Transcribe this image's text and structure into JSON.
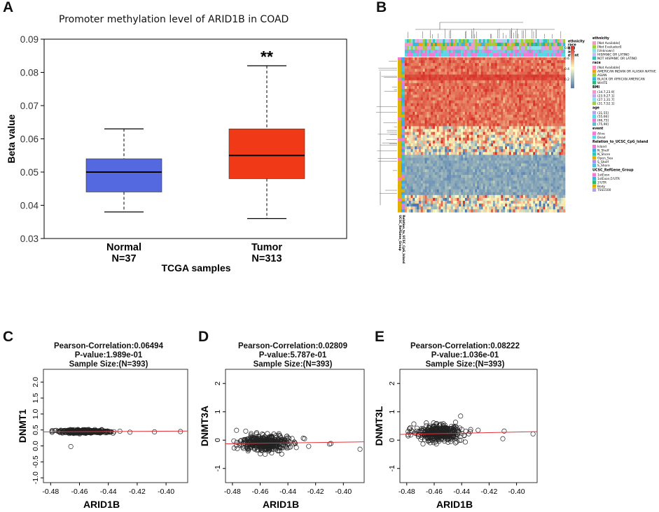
{
  "panel_labels": {
    "A": "A",
    "B": "B",
    "C": "C",
    "D": "D",
    "E": "E"
  },
  "colors": {
    "normal": "#5469e0",
    "tumor": "#f03a17",
    "fit_line": "#e8323c"
  },
  "chart_data": [
    {
      "id": "A",
      "type": "box",
      "title": "Promoter methylation level of ARID1B in COAD",
      "xlabel": "TCGA samples",
      "ylabel": "Beta value",
      "ylim": [
        0.03,
        0.09
      ],
      "yticks": [
        0.03,
        0.04,
        0.05,
        0.06,
        0.07,
        0.08,
        0.09
      ],
      "ytick_labels": [
        "0.03",
        "0.04",
        "0.05",
        "0.06",
        "0.07",
        "0.08",
        "0.09"
      ],
      "significance": "**",
      "groups": [
        {
          "name": "Normal",
          "n_label": "N=37",
          "min": 0.038,
          "q1": 0.044,
          "median": 0.05,
          "q3": 0.054,
          "max": 0.063
        },
        {
          "name": "Tumor",
          "n_label": "N=313",
          "min": 0.036,
          "q1": 0.048,
          "median": 0.055,
          "q3": 0.063,
          "max": 0.082
        }
      ]
    },
    {
      "id": "B",
      "type": "heatmap",
      "description": "Clustered methylation heatmap of ARID1B CpG probes",
      "top_annotation_labels": [
        "ethnicity",
        "race",
        "BMI",
        "age",
        "event"
      ],
      "side_annotation_labels": [
        "UCSC_RefGene_Group",
        "Relation_to_UCSC_CpG_Island"
      ],
      "color_scale": {
        "ticks": [
          0.8,
          0.6,
          0.4,
          0.2
        ],
        "tick_labels": [
          "0.8",
          "0.6",
          "0.4",
          "0.2"
        ],
        "high": "#d73027",
        "mid": "#fffec0",
        "low": "#4575b4"
      },
      "legend": [
        {
          "title": "ethnicity",
          "items": [
            {
              "label": "[Not Available]",
              "color": "#f598c8"
            },
            {
              "label": "[Not Evaluated]",
              "color": "#9fcf3a"
            },
            {
              "label": "[Unknown]",
              "color": "#8adfe0"
            },
            {
              "label": "HISPANIC OR LATINO",
              "color": "#d0b8f0"
            },
            {
              "label": "NOT HISPANIC OR LATINO",
              "color": "#35c2bf"
            }
          ]
        },
        {
          "title": "race",
          "items": [
            {
              "label": "[Not Available]",
              "color": "#f598c8"
            },
            {
              "label": "AMERICAN INDIAN OR ALASKA NATIVE",
              "color": "#f0a01e"
            },
            {
              "label": "ASIAN",
              "color": "#9fcf3a"
            },
            {
              "label": "BLACK OR AFRICAN AMERICAN",
              "color": "#3cb4e0"
            },
            {
              "label": "WHITE",
              "color": "#2cb870"
            }
          ]
        },
        {
          "title": "BMI",
          "items": [
            {
              "label": "(14.7,23.9]",
              "color": "#f598c8"
            },
            {
              "label": "(23.9,27.1]",
              "color": "#c7a6ee"
            },
            {
              "label": "(27.1,31.7]",
              "color": "#8be1ea"
            },
            {
              "label": "(31.7,52.1]",
              "color": "#a4c94b"
            }
          ]
        },
        {
          "title": "age",
          "items": [
            {
              "label": "(31,55]",
              "color": "#b7a0ec"
            },
            {
              "label": "(55,66]",
              "color": "#64d6dd"
            },
            {
              "label": "(66,75]",
              "color": "#e97ad2"
            },
            {
              "label": "(75,90]",
              "color": "#5bbfd0"
            }
          ]
        },
        {
          "title": "event",
          "items": [
            {
              "label": "Alive",
              "color": "#f27ad1"
            },
            {
              "label": "Dead",
              "color": "#5bd6e6"
            }
          ]
        },
        {
          "title": "Relation_to_UCSC_CpG_Island",
          "items": [
            {
              "label": "Island",
              "color": "#f27ad1"
            },
            {
              "label": "N_Shelf",
              "color": "#3fa8e6"
            },
            {
              "label": "N_Shore",
              "color": "#38c6a8"
            },
            {
              "label": "Open_Sea",
              "color": "#e0b000"
            },
            {
              "label": "S_Shelf",
              "color": "#b38cee"
            },
            {
              "label": "S_Shore",
              "color": "#54c0dc"
            }
          ]
        },
        {
          "title": "UCSC_RefGene_Group",
          "items": [
            {
              "label": "1stExon",
              "color": "#f27ad1"
            },
            {
              "label": "1stExon;5'UTR",
              "color": "#3cb4e0"
            },
            {
              "label": "3'UTR",
              "color": "#2cb870"
            },
            {
              "label": "Body",
              "color": "#e0b000"
            },
            {
              "label": "TSS1500",
              "color": "#b0a0f0"
            }
          ]
        }
      ],
      "row_blocks": [
        {
          "rows": 6,
          "level": "high"
        },
        {
          "rows": 2,
          "level": "very_high"
        },
        {
          "rows": 16,
          "level": "high"
        },
        {
          "rows": 6,
          "level": "mixed"
        },
        {
          "rows": 4,
          "level": "mixed_low"
        },
        {
          "rows": 14,
          "level": "low"
        },
        {
          "rows": 6,
          "level": "mixed_low"
        }
      ],
      "n_columns": 80
    },
    {
      "id": "C",
      "type": "scatter",
      "stat_lines": [
        "Pearson-Correlation:0.06494",
        "P-value:1.989e-01",
        "Sample Size:(N=393)"
      ],
      "xlabel": "ARID1B",
      "ylabel": "DNMT1",
      "xlim": [
        -0.485,
        -0.385
      ],
      "ylim": [
        -1.15,
        2.4
      ],
      "xticks": [
        -0.48,
        -0.46,
        -0.44,
        -0.42,
        -0.4
      ],
      "xtick_labels": [
        "-0.48",
        "-0.46",
        "-0.44",
        "-0.42",
        "-0.40"
      ],
      "yticks": [
        -1.0,
        -0.5,
        0.0,
        0.5,
        1.0,
        1.5,
        2.0
      ],
      "ytick_labels": [
        "-1.0",
        "-0.5",
        "0.0",
        "0.5",
        "1.0",
        "1.5",
        "2.0"
      ],
      "fit_line": {
        "x": [
          -0.485,
          -0.385
        ],
        "y": [
          0.44,
          0.465
        ]
      },
      "center": {
        "x": -0.457,
        "y": 0.45
      },
      "spread": {
        "x": 0.0085,
        "y": 0.025
      },
      "outliers": [
        [
          -0.466,
          -0.02
        ],
        [
          -0.408,
          0.44
        ],
        [
          -0.39,
          0.45
        ],
        [
          -0.425,
          0.43
        ],
        [
          -0.432,
          0.46
        ]
      ],
      "n_points": 393
    },
    {
      "id": "D",
      "type": "scatter",
      "stat_lines": [
        "Pearson-Correlation:0.02809",
        "P-value:5.787e-01",
        "Sample Size:(N=393)"
      ],
      "xlabel": "ARID1B",
      "ylabel": "DNMT3A",
      "xlim": [
        -0.485,
        -0.385
      ],
      "ylim": [
        -1.5,
        2.5
      ],
      "xticks": [
        -0.48,
        -0.46,
        -0.44,
        -0.42,
        -0.4
      ],
      "xtick_labels": [
        "-0.48",
        "-0.46",
        "-0.44",
        "-0.42",
        "-0.40"
      ],
      "yticks": [
        -1,
        0,
        1,
        2
      ],
      "ytick_labels": [
        "-1",
        "0",
        "1",
        "2"
      ],
      "fit_line": {
        "x": [
          -0.485,
          -0.385
        ],
        "y": [
          -0.13,
          -0.06
        ]
      },
      "center": {
        "x": -0.457,
        "y": -0.1
      },
      "spread": {
        "x": 0.0085,
        "y": 0.14
      },
      "outliers": [
        [
          -0.388,
          -0.32
        ],
        [
          -0.409,
          -0.12
        ],
        [
          -0.41,
          -0.14
        ],
        [
          -0.428,
          0.05
        ],
        [
          -0.425,
          -0.22
        ]
      ],
      "n_points": 393
    },
    {
      "id": "E",
      "type": "scatter",
      "stat_lines": [
        "Pearson-Correlation:0.08222",
        "P-value:1.036e-01",
        "Sample Size:(N=393)"
      ],
      "xlabel": "ARID1B",
      "ylabel": "DNMT3L",
      "xlim": [
        -0.485,
        -0.385
      ],
      "ylim": [
        -1.5,
        2.5
      ],
      "xticks": [
        -0.48,
        -0.46,
        -0.44,
        -0.42,
        -0.4
      ],
      "xtick_labels": [
        "-0.48",
        "-0.46",
        "-0.44",
        "-0.42",
        "-0.40"
      ],
      "yticks": [
        -1,
        0,
        1,
        2
      ],
      "ytick_labels": [
        "-1",
        "0",
        "1",
        "2"
      ],
      "fit_line": {
        "x": [
          -0.485,
          -0.385
        ],
        "y": [
          0.2,
          0.3
        ]
      },
      "center": {
        "x": -0.457,
        "y": 0.25
      },
      "spread": {
        "x": 0.0085,
        "y": 0.14
      },
      "outliers": [
        [
          -0.388,
          0.22
        ],
        [
          -0.409,
          0.32
        ],
        [
          -0.41,
          0.05
        ],
        [
          -0.428,
          0.35
        ],
        [
          -0.478,
          0.4
        ]
      ],
      "n_points": 393
    }
  ]
}
